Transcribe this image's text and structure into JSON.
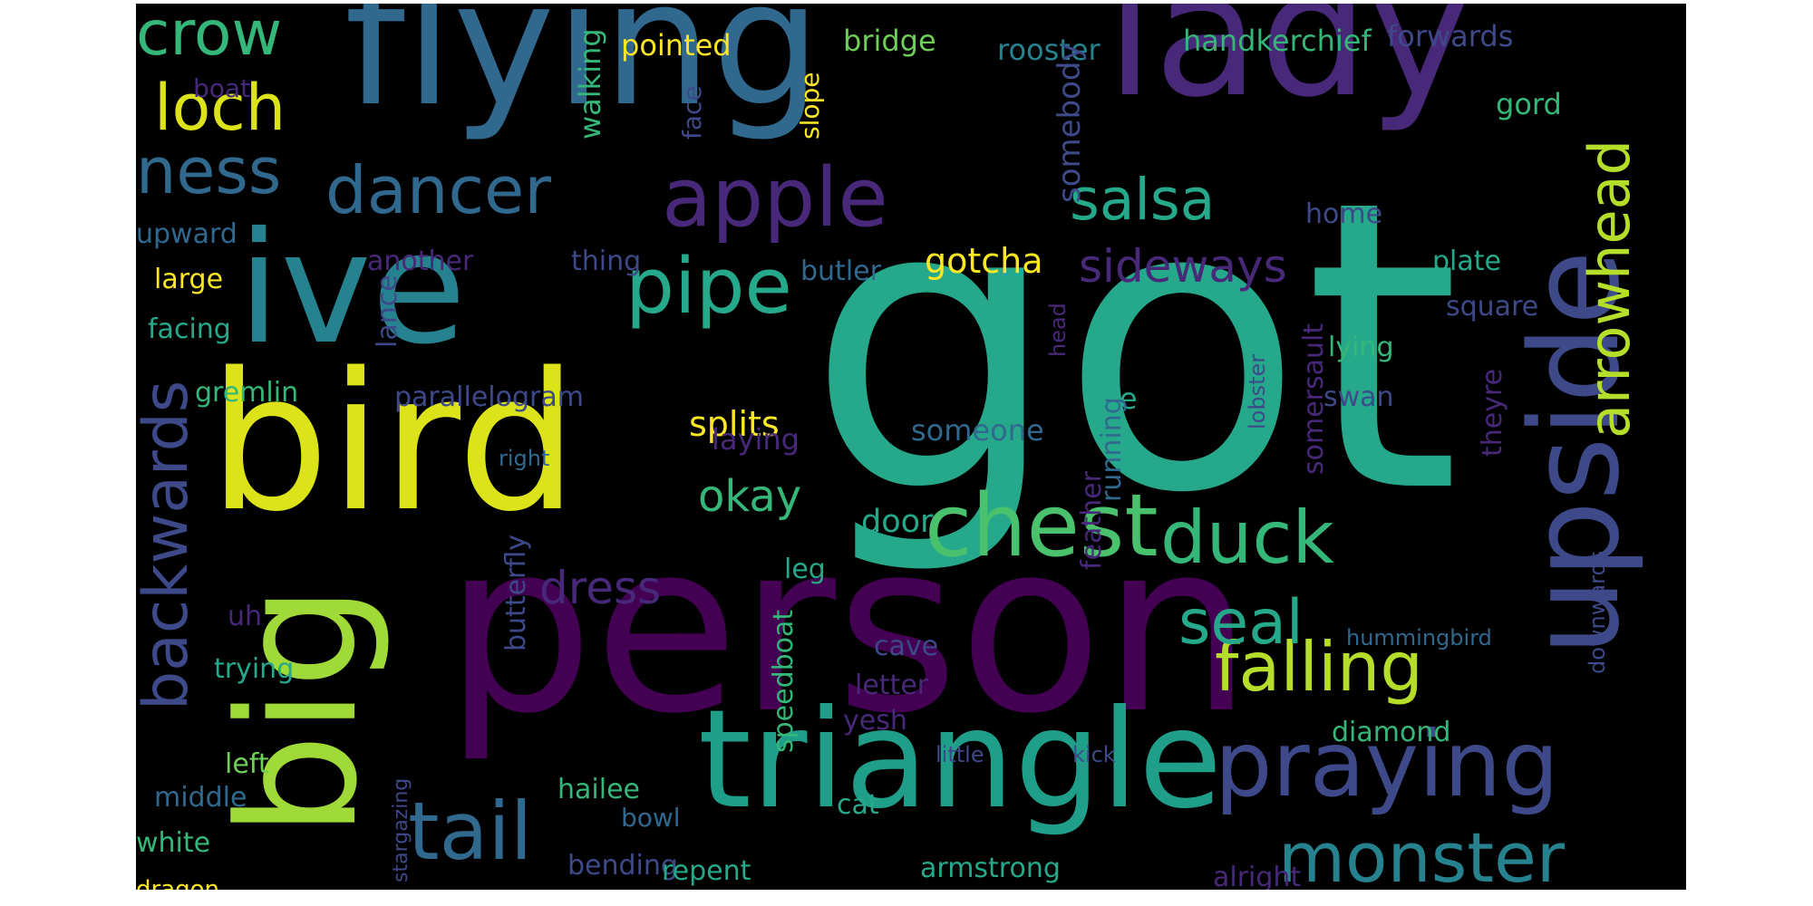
{
  "palette": {
    "background": "#000000",
    "yellow": "#fde725",
    "yellowgreen": "#b5de2b",
    "green": "#6ece58",
    "lightgreen": "#35b779",
    "teal": "#26a98b",
    "tealblue": "#1f9e89",
    "cyan": "#26828e",
    "steel": "#31688e",
    "blue": "#3e4989",
    "indigo": "#482878",
    "purple": "#440154"
  },
  "words": [
    {
      "text": "got",
      "color": "#26a98b",
      "orient": "h"
    },
    {
      "text": "person",
      "color": "#440154",
      "orient": "h"
    },
    {
      "text": "flying",
      "color": "#31688e",
      "orient": "h"
    },
    {
      "text": "lady",
      "color": "#482878",
      "orient": "h"
    },
    {
      "text": "ive",
      "color": "#26828e",
      "orient": "h"
    },
    {
      "text": "bird",
      "color": "#dce319",
      "orient": "h"
    },
    {
      "text": "big",
      "color": "#a0da39",
      "orient": "v"
    },
    {
      "text": "upside",
      "color": "#3e4989",
      "orient": "v"
    },
    {
      "text": "triangle",
      "color": "#1f9e89",
      "orient": "h"
    },
    {
      "text": "chest",
      "color": "#4ac16d",
      "orient": "h"
    },
    {
      "text": "praying",
      "color": "#3e4989",
      "orient": "h"
    },
    {
      "text": "apple",
      "color": "#482878",
      "orient": "h"
    },
    {
      "text": "pipe",
      "color": "#26a98b",
      "orient": "h"
    },
    {
      "text": "tail",
      "color": "#31688e",
      "orient": "h"
    },
    {
      "text": "monster",
      "color": "#26828e",
      "orient": "h"
    },
    {
      "text": "duck",
      "color": "#35b779",
      "orient": "h"
    },
    {
      "text": "falling",
      "color": "#b5de2b",
      "orient": "h"
    },
    {
      "text": "backwards",
      "color": "#3e4989",
      "orient": "v"
    },
    {
      "text": "dancer",
      "color": "#31688e",
      "orient": "h"
    },
    {
      "text": "arrowhead",
      "color": "#b5de2b",
      "orient": "v"
    },
    {
      "text": "crow",
      "color": "#35b779",
      "orient": "h"
    },
    {
      "text": "loch",
      "color": "#dce319",
      "orient": "h"
    },
    {
      "text": "ness",
      "color": "#31688e",
      "orient": "h"
    },
    {
      "text": "salsa",
      "color": "#26a98b",
      "orient": "h"
    },
    {
      "text": "seal",
      "color": "#26a98b",
      "orient": "h"
    },
    {
      "text": "sideways",
      "color": "#482878",
      "orient": "h"
    },
    {
      "text": "okay",
      "color": "#35b779",
      "orient": "h"
    },
    {
      "text": "dress",
      "color": "#482878",
      "orient": "h"
    },
    {
      "text": "splits",
      "color": "#fde725",
      "orient": "h"
    },
    {
      "text": "gotcha",
      "color": "#fde725",
      "orient": "h"
    },
    {
      "text": "bridge",
      "color": "#6ece58",
      "orient": "h"
    },
    {
      "text": "pointed",
      "color": "#fde725",
      "orient": "h"
    },
    {
      "text": "rooster",
      "color": "#26828e",
      "orient": "h"
    },
    {
      "text": "handkerchief",
      "color": "#35b779",
      "orient": "h"
    },
    {
      "text": "forwards",
      "color": "#3e4989",
      "orient": "h"
    },
    {
      "text": "gord",
      "color": "#35b779",
      "orient": "h"
    },
    {
      "text": "boat",
      "color": "#482878",
      "orient": "h"
    },
    {
      "text": "walking",
      "color": "#35b779",
      "orient": "v"
    },
    {
      "text": "face",
      "color": "#3e4989",
      "orient": "v"
    },
    {
      "text": "slope",
      "color": "#fde725",
      "orient": "v"
    },
    {
      "text": "somebody",
      "color": "#3e4989",
      "orient": "v"
    },
    {
      "text": "home",
      "color": "#3e4989",
      "orient": "h"
    },
    {
      "text": "plate",
      "color": "#26a98b",
      "orient": "h"
    },
    {
      "text": "square",
      "color": "#3e4989",
      "orient": "h"
    },
    {
      "text": "lying",
      "color": "#35b779",
      "orient": "h"
    },
    {
      "text": "swan",
      "color": "#3e4989",
      "orient": "h"
    },
    {
      "text": "theyre",
      "color": "#482878",
      "orient": "v"
    },
    {
      "text": "upward",
      "color": "#31688e",
      "orient": "h"
    },
    {
      "text": "large",
      "color": "#fde725",
      "orient": "h"
    },
    {
      "text": "another",
      "color": "#482878",
      "orient": "h"
    },
    {
      "text": "thing",
      "color": "#3e4989",
      "orient": "h"
    },
    {
      "text": "butler",
      "color": "#31688e",
      "orient": "h"
    },
    {
      "text": "facing",
      "color": "#26a98b",
      "orient": "h"
    },
    {
      "text": "lance",
      "color": "#3e4989",
      "orient": "v"
    },
    {
      "text": "gremlin",
      "color": "#35b779",
      "orient": "h"
    },
    {
      "text": "parallelogram",
      "color": "#3e4989",
      "orient": "h"
    },
    {
      "text": "one",
      "color": "#26a98b",
      "orient": "h"
    },
    {
      "text": "someone",
      "color": "#31688e",
      "orient": "h"
    },
    {
      "text": "laying",
      "color": "#482878",
      "orient": "h"
    },
    {
      "text": "running",
      "color": "#31688e",
      "orient": "v"
    },
    {
      "text": "somersault",
      "color": "#482878",
      "orient": "v"
    },
    {
      "text": "lobster",
      "color": "#3e4989",
      "orient": "v"
    },
    {
      "text": "head",
      "color": "#482878",
      "orient": "v"
    },
    {
      "text": "right",
      "color": "#31688e",
      "orient": "h"
    },
    {
      "text": "door",
      "color": "#26a98b",
      "orient": "h"
    },
    {
      "text": "feather",
      "color": "#482878",
      "orient": "v"
    },
    {
      "text": "leg",
      "color": "#26a98b",
      "orient": "h"
    },
    {
      "text": "uh",
      "color": "#482878",
      "orient": "h"
    },
    {
      "text": "butterfly",
      "color": "#3e4989",
      "orient": "v"
    },
    {
      "text": "trying",
      "color": "#26a98b",
      "orient": "h"
    },
    {
      "text": "cave",
      "color": "#3e4989",
      "orient": "h"
    },
    {
      "text": "letter",
      "color": "#482878",
      "orient": "h"
    },
    {
      "text": "yesh",
      "color": "#482878",
      "orient": "h"
    },
    {
      "text": "speedboat",
      "color": "#35b779",
      "orient": "v"
    },
    {
      "text": "diamond",
      "color": "#35b779",
      "orient": "h"
    },
    {
      "text": "hummingbird",
      "color": "#31688e",
      "orient": "h"
    },
    {
      "text": "downwards",
      "color": "#3e4989",
      "orient": "v"
    },
    {
      "text": "left",
      "color": "#6ece58",
      "orient": "h"
    },
    {
      "text": "middle",
      "color": "#31688e",
      "orient": "h"
    },
    {
      "text": "hailee",
      "color": "#35b779",
      "orient": "h"
    },
    {
      "text": "bowl",
      "color": "#31688e",
      "orient": "h"
    },
    {
      "text": "cat",
      "color": "#26a98b",
      "orient": "h"
    },
    {
      "text": "little",
      "color": "#3e4989",
      "orient": "h"
    },
    {
      "text": "kick",
      "color": "#3e4989",
      "orient": "h"
    },
    {
      "text": "white",
      "color": "#35b779",
      "orient": "h"
    },
    {
      "text": "bending",
      "color": "#3e4989",
      "orient": "h"
    },
    {
      "text": "repent",
      "color": "#26a98b",
      "orient": "h"
    },
    {
      "text": "armstrong",
      "color": "#26a98b",
      "orient": "h"
    },
    {
      "text": "alright",
      "color": "#482878",
      "orient": "h"
    },
    {
      "text": "stargazing",
      "color": "#3e4989",
      "orient": "v"
    },
    {
      "text": "dragon",
      "color": "#fde725",
      "orient": "h"
    }
  ]
}
